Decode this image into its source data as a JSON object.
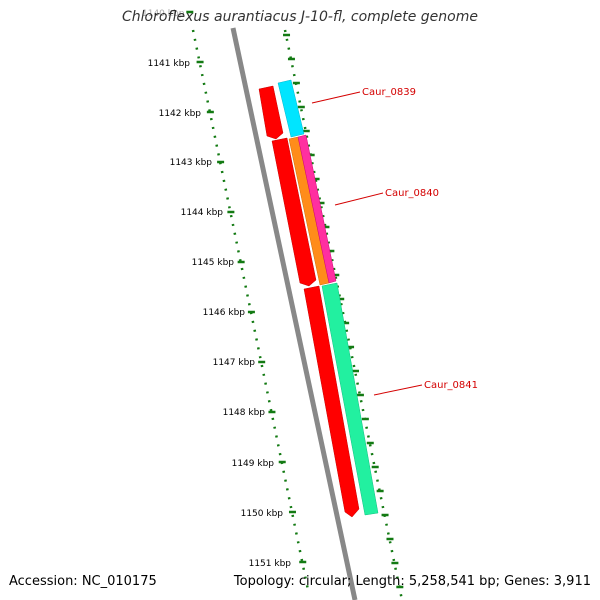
{
  "title": "Chloroflexus aurantiacus J-10-fl, complete genome",
  "footer": {
    "accession": "Accession: NC_010175",
    "summary": "Topology: circular; Length: 5,258,541 bp; Genes: 3,911"
  },
  "colors": {
    "backbone": "#888888",
    "dotted_track": "#137a13",
    "label": "#d40000",
    "gene_red": "#ff0000",
    "gene_cyan": "#00e5ff",
    "gene_orange": "#ff8c1a",
    "gene_magenta": "#ff2fa0",
    "gene_mint": "#22f0a0"
  },
  "kbp_labels": [
    "1140 kbp",
    "1141 kbp",
    "1142 kbp",
    "1143 kbp",
    "1144 kbp",
    "1145 kbp",
    "1146 kbp",
    "1147 kbp",
    "1148 kbp",
    "1149 kbp",
    "1150 kbp",
    "1151 kbp"
  ],
  "gene_labels": [
    {
      "id": "Caur_0839",
      "text": "Caur_0839"
    },
    {
      "id": "Caur_0840",
      "text": "Caur_0840"
    },
    {
      "id": "Caur_0841",
      "text": "Caur_0841"
    }
  ]
}
